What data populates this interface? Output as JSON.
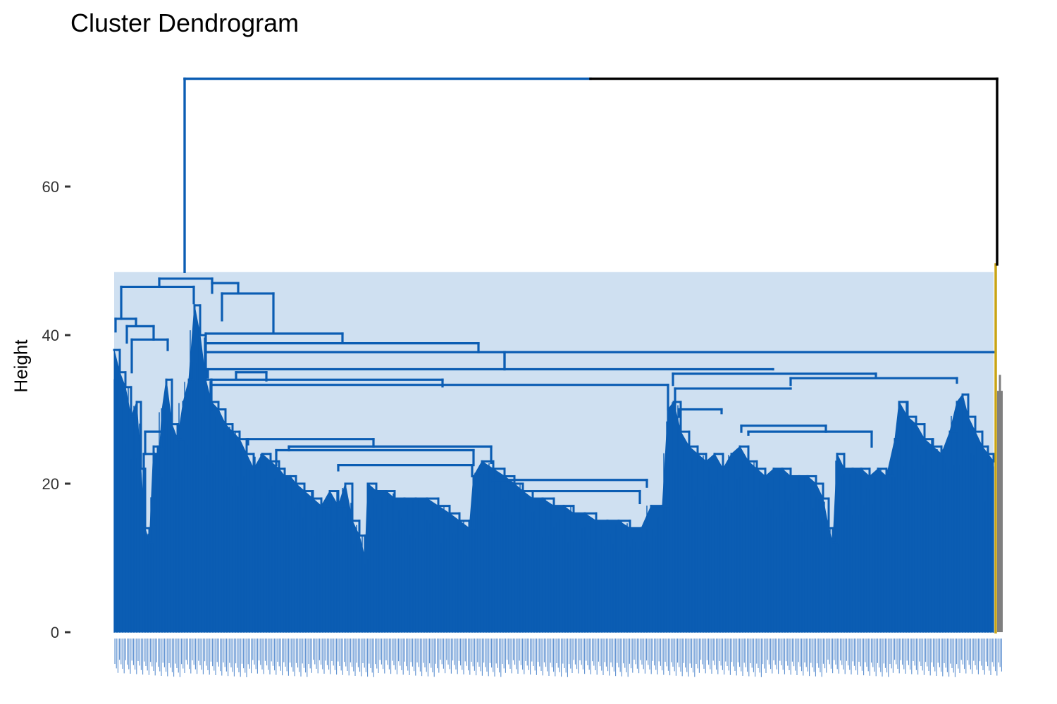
{
  "chart_data": {
    "type": "dendrogram",
    "title": "Cluster Dendrogram",
    "ylabel": "Height",
    "xlabel": "",
    "ylim": [
      0,
      75
    ],
    "yticks": [
      0,
      20,
      40,
      60
    ],
    "grid": false,
    "legend": "none",
    "top_merge_height": 74.5,
    "clusters": [
      {
        "color": "#0b5db3",
        "highlight": "#cfe0f1",
        "share": 0.995,
        "root_height": 48.5
      },
      {
        "color": "#c8a415",
        "share": 0.002,
        "root_height": 49.5
      },
      {
        "color": "#7f7f7f",
        "share": 0.003,
        "root_height": 32.5
      }
    ],
    "major_merges": [
      {
        "height": 47.6,
        "between": "left group",
        "and": "rest of cluster 1"
      },
      {
        "height": 46.5,
        "between": "leftmost subtrees"
      },
      {
        "height": 44.3,
        "between": "upper-left branches"
      },
      {
        "height": 38.7,
        "between": "left branches"
      },
      {
        "height": 37.7,
        "between": "middle group",
        "and": "right group"
      },
      {
        "height": 35.4,
        "between": "middle group",
        "and": "right group"
      },
      {
        "height": 33.3,
        "between": "right subtrees"
      },
      {
        "height": 20.5,
        "between": "middle fan"
      }
    ]
  }
}
